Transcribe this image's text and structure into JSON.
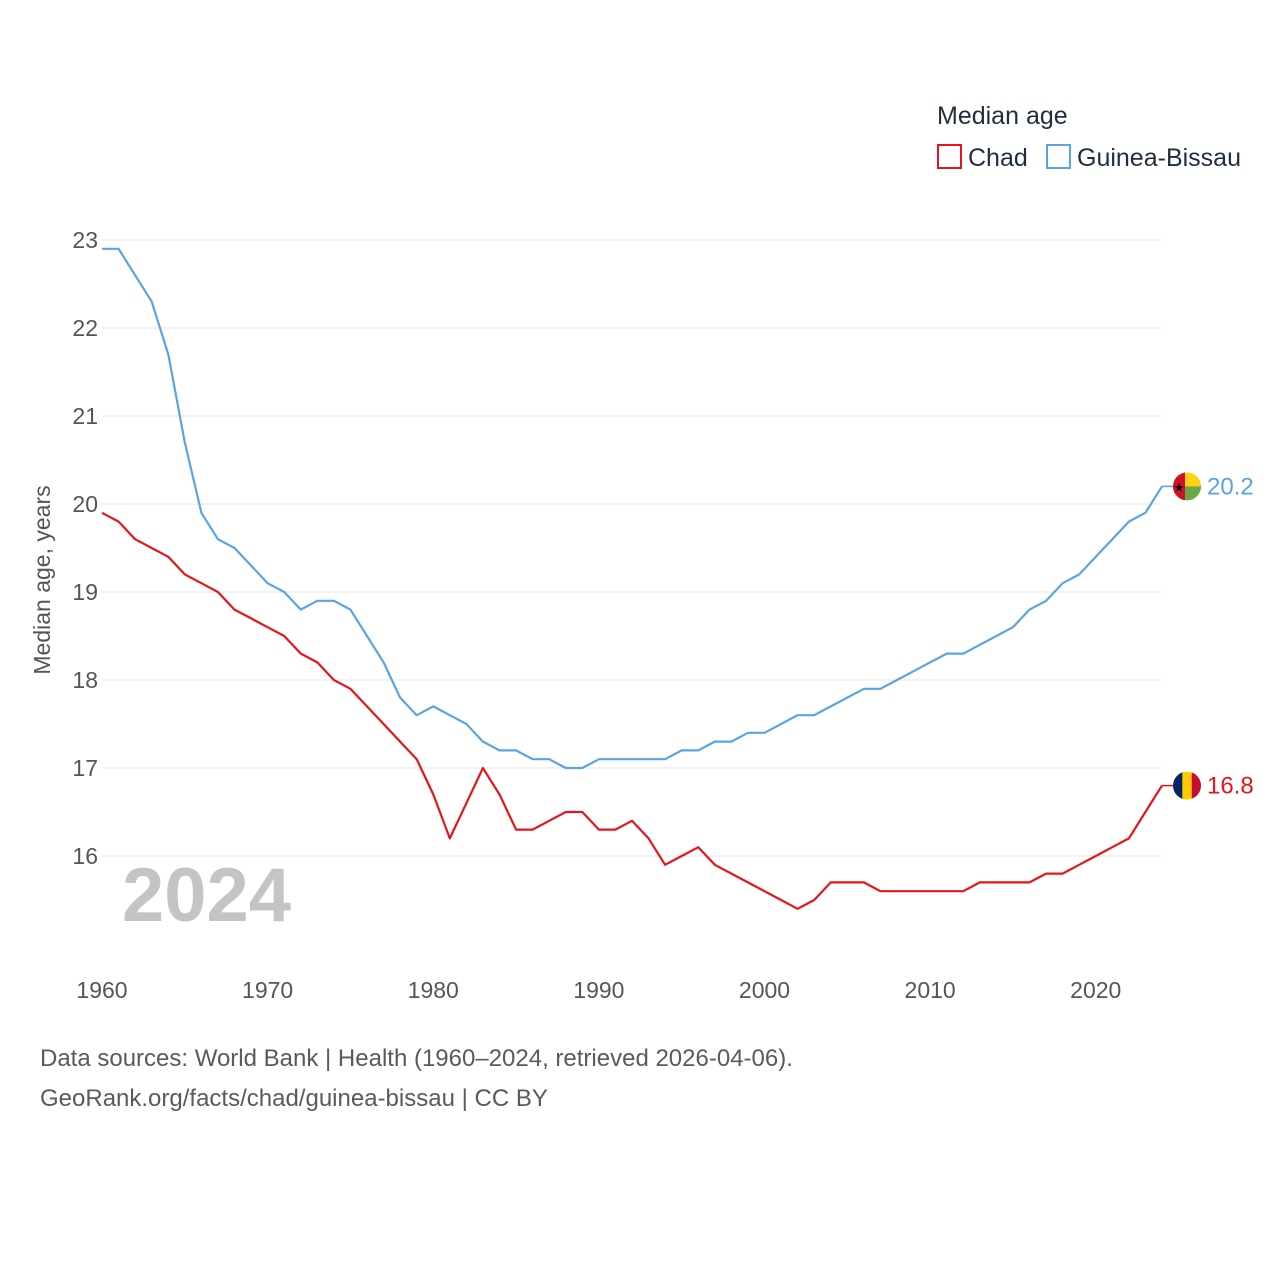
{
  "chart_data": {
    "type": "line",
    "legend": {
      "title": "Median age",
      "entries": [
        "Chad",
        "Guinea-Bissau"
      ],
      "position": "top-right"
    },
    "ylabel": "Median age, years",
    "ylim": [
      15,
      23
    ],
    "yticks": [
      16,
      17,
      18,
      19,
      20,
      21,
      22,
      23
    ],
    "xlim": [
      1960,
      2024
    ],
    "xticks": [
      1960,
      1970,
      1980,
      1990,
      2000,
      2010,
      2020
    ],
    "grid": true,
    "year_label": "2024",
    "x": [
      1960,
      1961,
      1962,
      1963,
      1964,
      1965,
      1966,
      1967,
      1968,
      1969,
      1970,
      1971,
      1972,
      1973,
      1974,
      1975,
      1976,
      1977,
      1978,
      1979,
      1980,
      1981,
      1982,
      1983,
      1984,
      1985,
      1986,
      1987,
      1988,
      1989,
      1990,
      1991,
      1992,
      1993,
      1994,
      1995,
      1996,
      1997,
      1998,
      1999,
      2000,
      2001,
      2002,
      2003,
      2004,
      2005,
      2006,
      2007,
      2008,
      2009,
      2010,
      2011,
      2012,
      2013,
      2014,
      2015,
      2016,
      2017,
      2018,
      2019,
      2020,
      2021,
      2022,
      2023,
      2024
    ],
    "series": [
      {
        "name": "Chad",
        "color": "#e8141c",
        "end_label": "16.8",
        "values": [
          19.9,
          19.8,
          19.6,
          19.5,
          19.4,
          19.2,
          19.1,
          19.0,
          18.8,
          18.7,
          18.6,
          18.5,
          18.3,
          18.2,
          18.0,
          17.9,
          17.7,
          17.5,
          17.3,
          17.1,
          16.7,
          16.2,
          16.6,
          17.0,
          16.7,
          16.3,
          16.3,
          16.4,
          16.5,
          16.5,
          16.3,
          16.3,
          16.4,
          16.2,
          15.9,
          16.0,
          16.1,
          15.9,
          15.8,
          15.7,
          15.6,
          15.5,
          15.4,
          15.5,
          15.7,
          15.7,
          15.7,
          15.6,
          15.6,
          15.6,
          15.6,
          15.6,
          15.6,
          15.7,
          15.7,
          15.7,
          15.7,
          15.8,
          15.8,
          15.9,
          16.0,
          16.1,
          16.2,
          16.5,
          16.8
        ]
      },
      {
        "name": "Guinea-Bissau",
        "color": "#5aa4e4",
        "end_label": "20.2",
        "values": [
          22.9,
          22.9,
          22.6,
          22.3,
          21.7,
          20.7,
          19.9,
          19.6,
          19.5,
          19.3,
          19.1,
          19.0,
          18.8,
          18.9,
          18.9,
          18.8,
          18.5,
          18.2,
          17.8,
          17.6,
          17.7,
          17.6,
          17.5,
          17.3,
          17.2,
          17.2,
          17.1,
          17.1,
          17.0,
          17.0,
          17.1,
          17.1,
          17.1,
          17.1,
          17.1,
          17.2,
          17.2,
          17.3,
          17.3,
          17.4,
          17.4,
          17.5,
          17.6,
          17.6,
          17.7,
          17.8,
          17.9,
          17.9,
          18.0,
          18.1,
          18.2,
          18.3,
          18.3,
          18.4,
          18.5,
          18.6,
          18.8,
          18.9,
          19.1,
          19.2,
          19.4,
          19.6,
          19.8,
          19.9,
          20.2
        ]
      }
    ]
  },
  "source": {
    "line1": "Data sources: World Bank | Health (1960–2024, retrieved 2026-04-06).",
    "line2": "GeoRank.org/facts/chad/guinea-bissau | CC BY"
  }
}
